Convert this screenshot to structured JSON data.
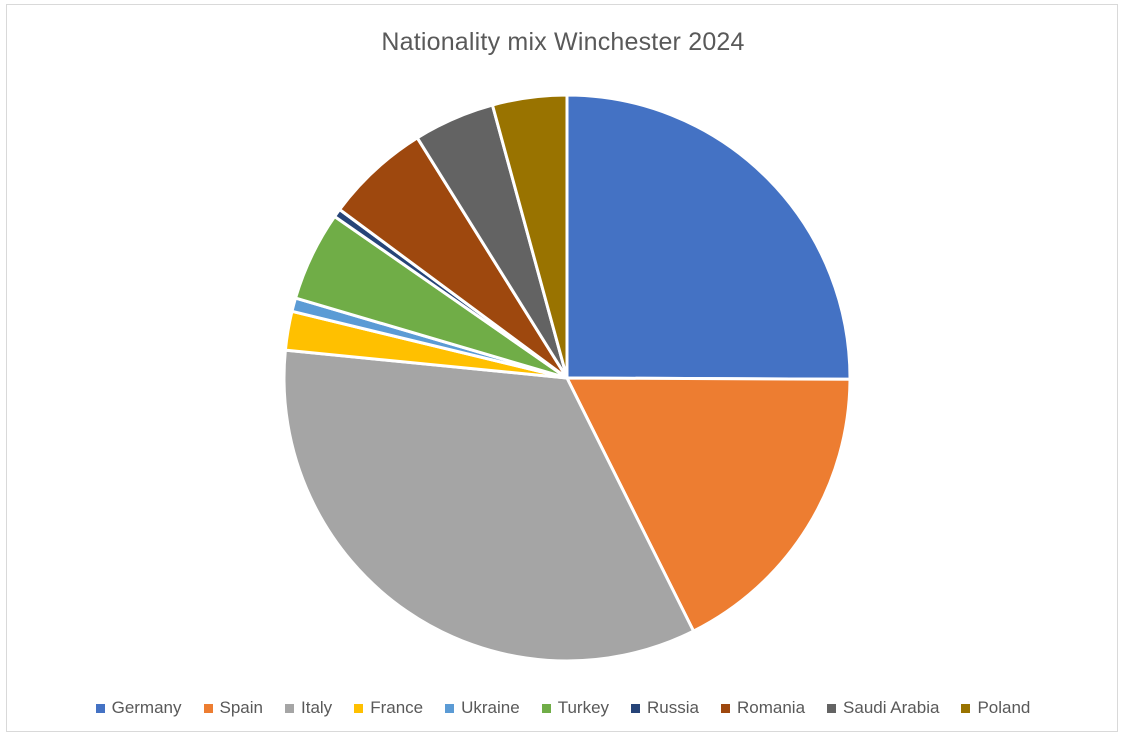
{
  "chart_data": {
    "type": "pie",
    "title": "Nationality mix Winchester 2024",
    "legend_position": "bottom",
    "slices": [
      {
        "name": "Germany",
        "value": 26.0,
        "color": "#4472C4"
      },
      {
        "name": "Spain",
        "value": 18.2,
        "color": "#ED7D31"
      },
      {
        "name": "Italy",
        "value": 35.2,
        "color": "#A5A5A5"
      },
      {
        "name": "France",
        "value": 2.3,
        "color": "#FFC000"
      },
      {
        "name": "Ukraine",
        "value": 0.8,
        "color": "#5B9BD5"
      },
      {
        "name": "Turkey",
        "value": 5.3,
        "color": "#70AD47"
      },
      {
        "name": "Russia",
        "value": 0.5,
        "color": "#264478"
      },
      {
        "name": "Romania",
        "value": 6.2,
        "color": "#9E480E"
      },
      {
        "name": "Saudi Arabia",
        "value": 4.8,
        "color": "#636363"
      },
      {
        "name": "Poland",
        "value": 4.4,
        "color": "#997300"
      }
    ]
  }
}
